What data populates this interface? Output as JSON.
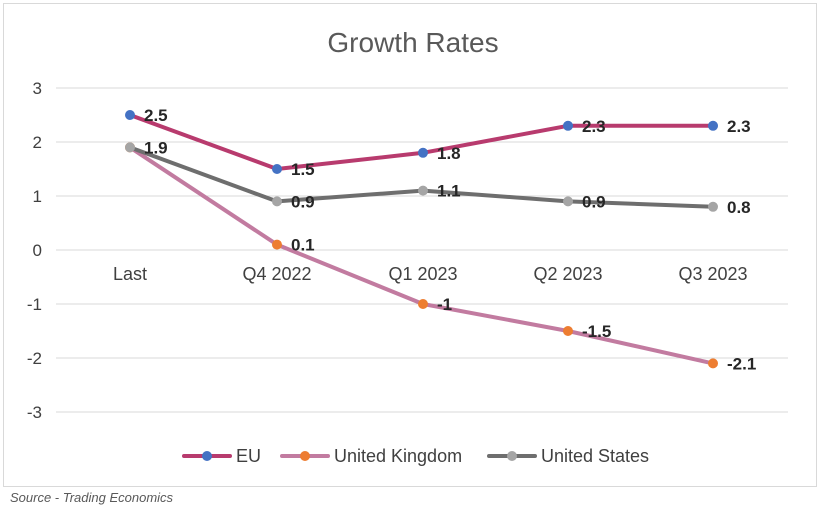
{
  "chart_data": {
    "type": "line",
    "title": "Growth Rates",
    "xlabel": "",
    "ylabel": "",
    "categories": [
      "Last",
      "Q4 2022",
      "Q1 2023",
      "Q2 2023",
      "Q3 2023"
    ],
    "ylim": [
      -3,
      3
    ],
    "yticks": [
      "3",
      "2",
      "1",
      "0",
      "-1",
      "-2",
      "-3"
    ],
    "grid": true,
    "legend_position": "bottom",
    "series": [
      {
        "name": "EU",
        "values": [
          2.5,
          1.5,
          1.8,
          2.3,
          2.3
        ],
        "labels": [
          "2.5",
          "1.5",
          "1.8",
          "2.3",
          "2.3"
        ],
        "line_color": "#b83b6e",
        "marker_color": "#4472c4"
      },
      {
        "name": "United Kingdom",
        "values": [
          1.9,
          0.1,
          -1,
          -1.5,
          -2.1
        ],
        "labels": [
          "",
          "0.1",
          "-1",
          "-1.5",
          "-2.1"
        ],
        "line_color": "#c27ba0",
        "marker_color": "#ed7d31"
      },
      {
        "name": "United States",
        "values": [
          1.9,
          0.9,
          1.1,
          0.9,
          0.8
        ],
        "labels": [
          "1.9",
          "0.9",
          "1.1",
          "0.9",
          "0.8"
        ],
        "line_color": "#6e6e6e",
        "marker_color": "#a5a5a5"
      }
    ]
  },
  "footer": {
    "source": "Source - Trading Economics"
  }
}
